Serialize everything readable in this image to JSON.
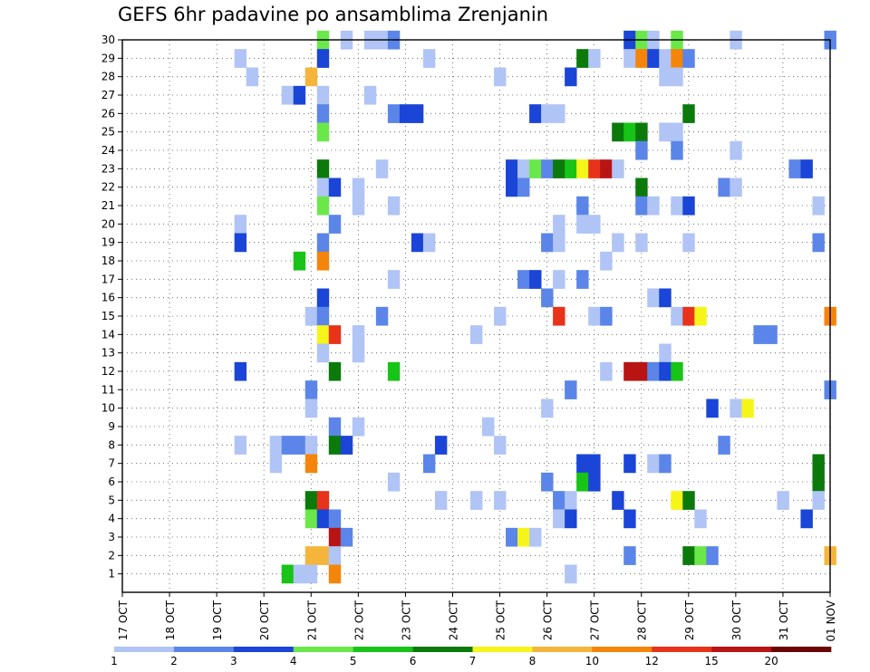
{
  "chart_data": {
    "type": "heatmap",
    "title": "GEFS 6hr padavine po ansamblima Zrenjanin",
    "x_ticks": [
      "17 OCT",
      "18 OCT",
      "19 OCT",
      "20 OCT",
      "21 OCT",
      "22 OCT",
      "23 OCT",
      "24 OCT",
      "25 OCT",
      "26 OCT",
      "27 OCT",
      "28 OCT",
      "29 OCT",
      "30 OCT",
      "31 OCT",
      "01 NOV"
    ],
    "x_range": [
      "2024-10-17T00:00",
      "2024-11-01T00:00"
    ],
    "x_step_hours": 6,
    "y_ticks": [
      1,
      2,
      3,
      4,
      5,
      6,
      7,
      8,
      9,
      10,
      11,
      12,
      13,
      14,
      15,
      16,
      17,
      18,
      19,
      20,
      21,
      22,
      23,
      24,
      25,
      26,
      27,
      28,
      29,
      30
    ],
    "y_range": [
      0,
      30
    ],
    "grid": true,
    "legend": {
      "placement": "bottom",
      "labels": [
        "1",
        "2",
        "3",
        "4",
        "5",
        "6",
        "7",
        "8",
        "10",
        "12",
        "15",
        "20"
      ],
      "colors": [
        "#b0c4f5",
        "#5b85e8",
        "#1a45d6",
        "#6ae84a",
        "#17c417",
        "#0b7a0b",
        "#f5f51a",
        "#f5b53a",
        "#f5850a",
        "#e8321a",
        "#b81414",
        "#6b0606"
      ]
    },
    "cells": [
      {
        "x": "2024-10-21T06:00",
        "y": 30,
        "v": 4.5
      },
      {
        "x": "2024-10-21T18:00",
        "y": 30,
        "v": 1.5
      },
      {
        "x": "2024-10-22T06:00",
        "y": 30,
        "v": 1.5
      },
      {
        "x": "2024-10-22T12:00",
        "y": 30,
        "v": 1.5
      },
      {
        "x": "2024-10-22T18:00",
        "y": 30,
        "v": 2.5
      },
      {
        "x": "2024-10-27T18:00",
        "y": 30,
        "v": 3.5
      },
      {
        "x": "2024-10-28T00:00",
        "y": 30,
        "v": 4.5
      },
      {
        "x": "2024-10-28T06:00",
        "y": 30,
        "v": 1.5
      },
      {
        "x": "2024-10-28T18:00",
        "y": 30,
        "v": 4.5
      },
      {
        "x": "2024-10-30T00:00",
        "y": 30,
        "v": 1.5
      },
      {
        "x": "2024-11-01T00:00",
        "y": 30,
        "v": 2.5
      },
      {
        "x": "2024-10-19T12:00",
        "y": 29,
        "v": 1.5
      },
      {
        "x": "2024-10-21T06:00",
        "y": 29,
        "v": 3.5
      },
      {
        "x": "2024-10-23T12:00",
        "y": 29,
        "v": 1.5
      },
      {
        "x": "2024-10-26T18:00",
        "y": 29,
        "v": 6.5
      },
      {
        "x": "2024-10-27T00:00",
        "y": 29,
        "v": 1.5
      },
      {
        "x": "2024-10-27T18:00",
        "y": 29,
        "v": 1.5
      },
      {
        "x": "2024-10-28T00:00",
        "y": 29,
        "v": 11
      },
      {
        "x": "2024-10-28T06:00",
        "y": 29,
        "v": 3.5
      },
      {
        "x": "2024-10-28T12:00",
        "y": 29,
        "v": 1.5
      },
      {
        "x": "2024-10-28T18:00",
        "y": 29,
        "v": 11
      },
      {
        "x": "2024-10-29T00:00",
        "y": 29,
        "v": 2.5
      },
      {
        "x": "2024-10-19T18:00",
        "y": 28,
        "v": 1.5
      },
      {
        "x": "2024-10-21T00:00",
        "y": 28,
        "v": 9
      },
      {
        "x": "2024-10-25T00:00",
        "y": 28,
        "v": 1.5
      },
      {
        "x": "2024-10-26T12:00",
        "y": 28,
        "v": 3.5
      },
      {
        "x": "2024-10-28T12:00",
        "y": 28,
        "v": 1.5
      },
      {
        "x": "2024-10-28T18:00",
        "y": 28,
        "v": 1.5
      },
      {
        "x": "2024-10-20T12:00",
        "y": 27,
        "v": 1.5
      },
      {
        "x": "2024-10-20T18:00",
        "y": 27,
        "v": 3.5
      },
      {
        "x": "2024-10-21T06:00",
        "y": 27,
        "v": 1.5
      },
      {
        "x": "2024-10-22T06:00",
        "y": 27,
        "v": 1.5
      },
      {
        "x": "2024-10-21T06:00",
        "y": 26,
        "v": 2.5
      },
      {
        "x": "2024-10-22T18:00",
        "y": 26,
        "v": 2.5
      },
      {
        "x": "2024-10-23T00:00",
        "y": 26,
        "v": 3.5
      },
      {
        "x": "2024-10-23T06:00",
        "y": 26,
        "v": 3.5
      },
      {
        "x": "2024-10-25T18:00",
        "y": 26,
        "v": 3.5
      },
      {
        "x": "2024-10-26T00:00",
        "y": 26,
        "v": 1.5
      },
      {
        "x": "2024-10-26T06:00",
        "y": 26,
        "v": 1.5
      },
      {
        "x": "2024-10-29T00:00",
        "y": 26,
        "v": 6.5
      },
      {
        "x": "2024-10-21T06:00",
        "y": 25,
        "v": 4.5
      },
      {
        "x": "2024-10-27T12:00",
        "y": 25,
        "v": 6.5
      },
      {
        "x": "2024-10-27T18:00",
        "y": 25,
        "v": 5.5
      },
      {
        "x": "2024-10-28T00:00",
        "y": 25,
        "v": 6.5
      },
      {
        "x": "2024-10-28T12:00",
        "y": 25,
        "v": 1.5
      },
      {
        "x": "2024-10-28T18:00",
        "y": 25,
        "v": 1.5
      },
      {
        "x": "2024-10-28T00:00",
        "y": 24,
        "v": 2.5
      },
      {
        "x": "2024-10-28T18:00",
        "y": 24,
        "v": 2.5
      },
      {
        "x": "2024-10-30T00:00",
        "y": 24,
        "v": 1.5
      },
      {
        "x": "2024-10-21T06:00",
        "y": 23,
        "v": 6.5
      },
      {
        "x": "2024-10-22T12:00",
        "y": 23,
        "v": 1.5
      },
      {
        "x": "2024-10-25T06:00",
        "y": 23,
        "v": 3.5
      },
      {
        "x": "2024-10-25T12:00",
        "y": 23,
        "v": 1.5
      },
      {
        "x": "2024-10-25T18:00",
        "y": 23,
        "v": 4.5
      },
      {
        "x": "2024-10-26T00:00",
        "y": 23,
        "v": 2.5
      },
      {
        "x": "2024-10-26T06:00",
        "y": 23,
        "v": 6.5
      },
      {
        "x": "2024-10-26T12:00",
        "y": 23,
        "v": 5.5
      },
      {
        "x": "2024-10-26T18:00",
        "y": 23,
        "v": 7.5
      },
      {
        "x": "2024-10-27T00:00",
        "y": 23,
        "v": 13
      },
      {
        "x": "2024-10-27T06:00",
        "y": 23,
        "v": 17
      },
      {
        "x": "2024-10-27T12:00",
        "y": 23,
        "v": 1.5
      },
      {
        "x": "2024-10-31T06:00",
        "y": 23,
        "v": 2.5
      },
      {
        "x": "2024-10-31T12:00",
        "y": 23,
        "v": 3.5
      },
      {
        "x": "2024-10-21T06:00",
        "y": 22,
        "v": 1.5
      },
      {
        "x": "2024-10-21T12:00",
        "y": 22,
        "v": 3.5
      },
      {
        "x": "2024-10-22T00:00",
        "y": 22,
        "v": 1.5
      },
      {
        "x": "2024-10-25T06:00",
        "y": 22,
        "v": 3.5
      },
      {
        "x": "2024-10-25T12:00",
        "y": 22,
        "v": 2.5
      },
      {
        "x": "2024-10-28T00:00",
        "y": 22,
        "v": 6.5
      },
      {
        "x": "2024-10-29T18:00",
        "y": 22,
        "v": 2.5
      },
      {
        "x": "2024-10-30T00:00",
        "y": 22,
        "v": 1.5
      },
      {
        "x": "2024-10-21T06:00",
        "y": 21,
        "v": 4.5
      },
      {
        "x": "2024-10-22T00:00",
        "y": 21,
        "v": 1.5
      },
      {
        "x": "2024-10-22T18:00",
        "y": 21,
        "v": 1.5
      },
      {
        "x": "2024-10-26T18:00",
        "y": 21,
        "v": 2.5
      },
      {
        "x": "2024-10-28T00:00",
        "y": 21,
        "v": 2.5
      },
      {
        "x": "2024-10-28T06:00",
        "y": 21,
        "v": 1.5
      },
      {
        "x": "2024-10-28T18:00",
        "y": 21,
        "v": 1.5
      },
      {
        "x": "2024-10-29T00:00",
        "y": 21,
        "v": 3.5
      },
      {
        "x": "2024-10-31T18:00",
        "y": 21,
        "v": 1.5
      },
      {
        "x": "2024-10-19T12:00",
        "y": 20,
        "v": 1.5
      },
      {
        "x": "2024-10-21T12:00",
        "y": 20,
        "v": 2.5
      },
      {
        "x": "2024-10-26T06:00",
        "y": 20,
        "v": 1.5
      },
      {
        "x": "2024-10-26T18:00",
        "y": 20,
        "v": 1.5
      },
      {
        "x": "2024-10-27T00:00",
        "y": 20,
        "v": 1.5
      },
      {
        "x": "2024-10-19T12:00",
        "y": 19,
        "v": 3.5
      },
      {
        "x": "2024-10-21T06:00",
        "y": 19,
        "v": 2.5
      },
      {
        "x": "2024-10-23T06:00",
        "y": 19,
        "v": 3.5
      },
      {
        "x": "2024-10-23T12:00",
        "y": 19,
        "v": 1.5
      },
      {
        "x": "2024-10-26T00:00",
        "y": 19,
        "v": 2.5
      },
      {
        "x": "2024-10-26T06:00",
        "y": 19,
        "v": 1.5
      },
      {
        "x": "2024-10-27T12:00",
        "y": 19,
        "v": 1.5
      },
      {
        "x": "2024-10-28T00:00",
        "y": 19,
        "v": 1.5
      },
      {
        "x": "2024-10-29T00:00",
        "y": 19,
        "v": 1.5
      },
      {
        "x": "2024-10-31T18:00",
        "y": 19,
        "v": 2.5
      },
      {
        "x": "2024-10-20T18:00",
        "y": 18,
        "v": 5.5
      },
      {
        "x": "2024-10-21T06:00",
        "y": 18,
        "v": 11
      },
      {
        "x": "2024-10-27T06:00",
        "y": 18,
        "v": 1.5
      },
      {
        "x": "2024-10-22T18:00",
        "y": 17,
        "v": 1.5
      },
      {
        "x": "2024-10-25T12:00",
        "y": 17,
        "v": 2.5
      },
      {
        "x": "2024-10-25T18:00",
        "y": 17,
        "v": 3.5
      },
      {
        "x": "2024-10-26T06:00",
        "y": 17,
        "v": 1.5
      },
      {
        "x": "2024-10-26T18:00",
        "y": 17,
        "v": 2.5
      },
      {
        "x": "2024-10-21T06:00",
        "y": 16,
        "v": 3.5
      },
      {
        "x": "2024-10-26T00:00",
        "y": 16,
        "v": 2.5
      },
      {
        "x": "2024-10-28T06:00",
        "y": 16,
        "v": 1.5
      },
      {
        "x": "2024-10-28T12:00",
        "y": 16,
        "v": 3.5
      },
      {
        "x": "2024-10-21T00:00",
        "y": 15,
        "v": 1.5
      },
      {
        "x": "2024-10-21T06:00",
        "y": 15,
        "v": 2.5
      },
      {
        "x": "2024-10-22T12:00",
        "y": 15,
        "v": 2.5
      },
      {
        "x": "2024-10-25T00:00",
        "y": 15,
        "v": 1.5
      },
      {
        "x": "2024-10-26T06:00",
        "y": 15,
        "v": 13
      },
      {
        "x": "2024-10-27T00:00",
        "y": 15,
        "v": 1.5
      },
      {
        "x": "2024-10-27T06:00",
        "y": 15,
        "v": 2.5
      },
      {
        "x": "2024-10-28T18:00",
        "y": 15,
        "v": 1.5
      },
      {
        "x": "2024-10-29T00:00",
        "y": 15,
        "v": 13
      },
      {
        "x": "2024-10-29T06:00",
        "y": 15,
        "v": 7.5
      },
      {
        "x": "2024-11-01T00:00",
        "y": 15,
        "v": 11
      },
      {
        "x": "2024-10-21T06:00",
        "y": 14,
        "v": 7.5
      },
      {
        "x": "2024-10-21T12:00",
        "y": 14,
        "v": 13
      },
      {
        "x": "2024-10-22T00:00",
        "y": 14,
        "v": 1.5
      },
      {
        "x": "2024-10-24T12:00",
        "y": 14,
        "v": 1.5
      },
      {
        "x": "2024-10-30T12:00",
        "y": 14,
        "v": 2.5
      },
      {
        "x": "2024-10-30T18:00",
        "y": 14,
        "v": 2.5
      },
      {
        "x": "2024-10-21T06:00",
        "y": 13,
        "v": 1.5
      },
      {
        "x": "2024-10-22T00:00",
        "y": 13,
        "v": 1.5
      },
      {
        "x": "2024-10-28T12:00",
        "y": 13,
        "v": 1.5
      },
      {
        "x": "2024-10-19T12:00",
        "y": 12,
        "v": 3.5
      },
      {
        "x": "2024-10-21T12:00",
        "y": 12,
        "v": 6.5
      },
      {
        "x": "2024-10-22T18:00",
        "y": 12,
        "v": 5.5
      },
      {
        "x": "2024-10-27T06:00",
        "y": 12,
        "v": 1.5
      },
      {
        "x": "2024-10-27T18:00",
        "y": 12,
        "v": 17
      },
      {
        "x": "2024-10-28T00:00",
        "y": 12,
        "v": 17
      },
      {
        "x": "2024-10-28T06:00",
        "y": 12,
        "v": 2.5
      },
      {
        "x": "2024-10-28T12:00",
        "y": 12,
        "v": 3.5
      },
      {
        "x": "2024-10-28T18:00",
        "y": 12,
        "v": 5.5
      },
      {
        "x": "2024-10-21T00:00",
        "y": 11,
        "v": 2.5
      },
      {
        "x": "2024-10-26T12:00",
        "y": 11,
        "v": 2.5
      },
      {
        "x": "2024-11-01T00:00",
        "y": 11,
        "v": 2.5
      },
      {
        "x": "2024-10-21T00:00",
        "y": 10,
        "v": 1.5
      },
      {
        "x": "2024-10-26T00:00",
        "y": 10,
        "v": 1.5
      },
      {
        "x": "2024-10-29T12:00",
        "y": 10,
        "v": 3.5
      },
      {
        "x": "2024-10-30T00:00",
        "y": 10,
        "v": 1.5
      },
      {
        "x": "2024-10-30T06:00",
        "y": 10,
        "v": 7.5
      },
      {
        "x": "2024-10-21T12:00",
        "y": 9,
        "v": 2.5
      },
      {
        "x": "2024-10-22T00:00",
        "y": 9,
        "v": 1.5
      },
      {
        "x": "2024-10-24T18:00",
        "y": 9,
        "v": 1.5
      },
      {
        "x": "2024-10-19T12:00",
        "y": 8,
        "v": 1.5
      },
      {
        "x": "2024-10-20T06:00",
        "y": 8,
        "v": 1.5
      },
      {
        "x": "2024-10-20T12:00",
        "y": 8,
        "v": 2.5
      },
      {
        "x": "2024-10-20T18:00",
        "y": 8,
        "v": 2.5
      },
      {
        "x": "2024-10-21T00:00",
        "y": 8,
        "v": 1.5
      },
      {
        "x": "2024-10-21T12:00",
        "y": 8,
        "v": 6.5
      },
      {
        "x": "2024-10-21T18:00",
        "y": 8,
        "v": 3.5
      },
      {
        "x": "2024-10-23T18:00",
        "y": 8,
        "v": 3.5
      },
      {
        "x": "2024-10-25T00:00",
        "y": 8,
        "v": 1.5
      },
      {
        "x": "2024-10-29T18:00",
        "y": 8,
        "v": 2.5
      },
      {
        "x": "2024-10-20T06:00",
        "y": 7,
        "v": 1.5
      },
      {
        "x": "2024-10-21T00:00",
        "y": 7,
        "v": 11
      },
      {
        "x": "2024-10-23T12:00",
        "y": 7,
        "v": 2.5
      },
      {
        "x": "2024-10-26T18:00",
        "y": 7,
        "v": 3.5
      },
      {
        "x": "2024-10-27T00:00",
        "y": 7,
        "v": 3.5
      },
      {
        "x": "2024-10-27T18:00",
        "y": 7,
        "v": 3.5
      },
      {
        "x": "2024-10-28T06:00",
        "y": 7,
        "v": 1.5
      },
      {
        "x": "2024-10-28T12:00",
        "y": 7,
        "v": 2.5
      },
      {
        "x": "2024-10-31T18:00",
        "y": 7,
        "v": 6.5
      },
      {
        "x": "2024-10-22T18:00",
        "y": 6,
        "v": 1.5
      },
      {
        "x": "2024-10-26T00:00",
        "y": 6,
        "v": 2.5
      },
      {
        "x": "2024-10-26T18:00",
        "y": 6,
        "v": 5.5
      },
      {
        "x": "2024-10-27T00:00",
        "y": 6,
        "v": 3.5
      },
      {
        "x": "2024-10-31T18:00",
        "y": 6,
        "v": 6.5
      },
      {
        "x": "2024-10-21T00:00",
        "y": 5,
        "v": 6.5
      },
      {
        "x": "2024-10-21T06:00",
        "y": 5,
        "v": 13
      },
      {
        "x": "2024-10-23T18:00",
        "y": 5,
        "v": 1.5
      },
      {
        "x": "2024-10-24T12:00",
        "y": 5,
        "v": 1.5
      },
      {
        "x": "2024-10-25T00:00",
        "y": 5,
        "v": 1.5
      },
      {
        "x": "2024-10-26T06:00",
        "y": 5,
        "v": 2.5
      },
      {
        "x": "2024-10-26T12:00",
        "y": 5,
        "v": 1.5
      },
      {
        "x": "2024-10-27T12:00",
        "y": 5,
        "v": 3.5
      },
      {
        "x": "2024-10-28T18:00",
        "y": 5,
        "v": 7.5
      },
      {
        "x": "2024-10-29T00:00",
        "y": 5,
        "v": 6.5
      },
      {
        "x": "2024-10-31T00:00",
        "y": 5,
        "v": 1.5
      },
      {
        "x": "2024-10-31T18:00",
        "y": 5,
        "v": 1.5
      },
      {
        "x": "2024-10-21T00:00",
        "y": 4,
        "v": 4.5
      },
      {
        "x": "2024-10-21T06:00",
        "y": 4,
        "v": 3.5
      },
      {
        "x": "2024-10-21T12:00",
        "y": 4,
        "v": 2.5
      },
      {
        "x": "2024-10-26T06:00",
        "y": 4,
        "v": 1.5
      },
      {
        "x": "2024-10-26T12:00",
        "y": 4,
        "v": 3.5
      },
      {
        "x": "2024-10-27T18:00",
        "y": 4,
        "v": 3.5
      },
      {
        "x": "2024-10-29T06:00",
        "y": 4,
        "v": 1.5
      },
      {
        "x": "2024-10-31T12:00",
        "y": 4,
        "v": 3.5
      },
      {
        "x": "2024-10-21T12:00",
        "y": 3,
        "v": 17
      },
      {
        "x": "2024-10-21T18:00",
        "y": 3,
        "v": 2.5
      },
      {
        "x": "2024-10-25T06:00",
        "y": 3,
        "v": 2.5
      },
      {
        "x": "2024-10-25T12:00",
        "y": 3,
        "v": 7.5
      },
      {
        "x": "2024-10-25T18:00",
        "y": 3,
        "v": 1.5
      },
      {
        "x": "2024-10-21T00:00",
        "y": 2,
        "v": 9
      },
      {
        "x": "2024-10-21T06:00",
        "y": 2,
        "v": 9
      },
      {
        "x": "2024-10-21T12:00",
        "y": 2,
        "v": 1.5
      },
      {
        "x": "2024-10-27T18:00",
        "y": 2,
        "v": 2.5
      },
      {
        "x": "2024-10-29T00:00",
        "y": 2,
        "v": 6.5
      },
      {
        "x": "2024-10-29T06:00",
        "y": 2,
        "v": 4.5
      },
      {
        "x": "2024-10-29T12:00",
        "y": 2,
        "v": 2.5
      },
      {
        "x": "2024-11-01T00:00",
        "y": 2,
        "v": 9
      },
      {
        "x": "2024-10-20T12:00",
        "y": 1,
        "v": 5.5
      },
      {
        "x": "2024-10-20T18:00",
        "y": 1,
        "v": 1.5
      },
      {
        "x": "2024-10-21T00:00",
        "y": 1,
        "v": 1.5
      },
      {
        "x": "2024-10-21T12:00",
        "y": 1,
        "v": 11
      },
      {
        "x": "2024-10-26T12:00",
        "y": 1,
        "v": 1.5
      }
    ]
  }
}
